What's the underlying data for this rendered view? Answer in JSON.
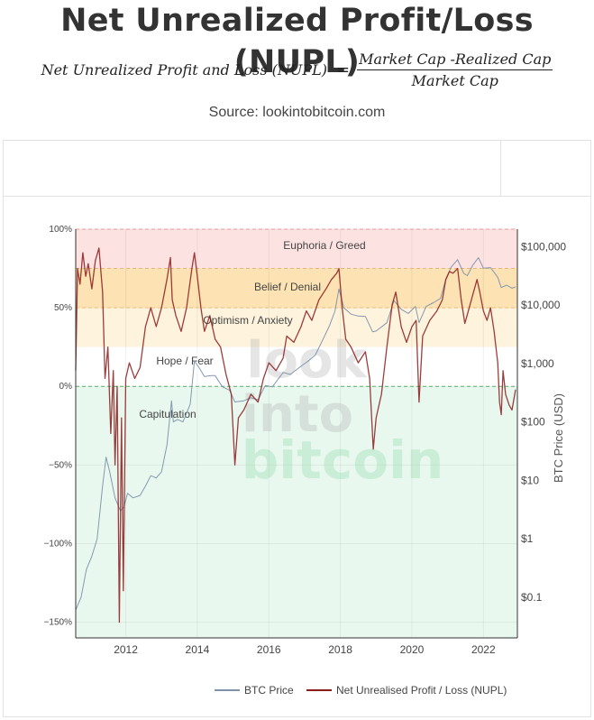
{
  "title": "Net Unrealized Profit/Loss (NUPL)",
  "formula": {
    "lhs": "Net Unrealized Profit and Loss (NUPL)",
    "equals": "=",
    "numerator": "Market Cap -Realized Cap",
    "denominator": "Market Cap"
  },
  "source": "Source: lookintobitcoin.com",
  "watermark": [
    "look",
    "into",
    "bitcoin"
  ],
  "chart_data": {
    "type": "line",
    "x_ticks": [
      "2012",
      "2014",
      "2016",
      "2018",
      "2020",
      "2022"
    ],
    "xlim": [
      2010.6,
      2022.95
    ],
    "y_left": {
      "ticks": [
        "100%",
        "50%",
        "0%",
        "−50%",
        "−100%",
        "−150%"
      ],
      "tick_values": [
        1.0,
        0.5,
        0.0,
        -0.5,
        -1.0,
        -1.5
      ],
      "range": [
        -1.6,
        1.0
      ]
    },
    "y_right": {
      "label": "BTC Price (USD)",
      "ticks": [
        "$100,000",
        "$10,000",
        "$1,000",
        "$100",
        "$10",
        "$1",
        "$0.1"
      ],
      "tick_values": [
        100000,
        10000,
        1000,
        100,
        10,
        1,
        0.1
      ],
      "scale": "log",
      "range": [
        0.02,
        200000
      ]
    },
    "zones": [
      {
        "label": "Euphoria / Greed",
        "from": 0.75,
        "to": 1.0,
        "color": "#fde2e2"
      },
      {
        "label": "Belief / Denial",
        "from": 0.5,
        "to": 0.75,
        "color": "#fde3b3"
      },
      {
        "label": "Optimism / Anxiety",
        "from": 0.25,
        "to": 0.5,
        "color": "#fef3dc"
      },
      {
        "label": "Hope / Fear",
        "from": 0.0,
        "to": 0.25,
        "color": "#ffffff"
      },
      {
        "label": "Capitulation",
        "from": -1.6,
        "to": 0.0,
        "color": "#e9f8ef"
      }
    ],
    "series": [
      {
        "name": "BTC Price",
        "color": "#7e92ab",
        "axis": "right",
        "points": [
          [
            2010.6,
            0.06
          ],
          [
            2010.75,
            0.1
          ],
          [
            2010.9,
            0.3
          ],
          [
            2011.05,
            0.5
          ],
          [
            2011.2,
            1.0
          ],
          [
            2011.35,
            8
          ],
          [
            2011.45,
            25
          ],
          [
            2011.55,
            14
          ],
          [
            2011.7,
            5
          ],
          [
            2011.85,
            3
          ],
          [
            2011.95,
            3.5
          ],
          [
            2012.05,
            6
          ],
          [
            2012.2,
            5
          ],
          [
            2012.4,
            5.5
          ],
          [
            2012.55,
            8
          ],
          [
            2012.7,
            12
          ],
          [
            2012.85,
            11
          ],
          [
            2013.0,
            14
          ],
          [
            2013.15,
            40
          ],
          [
            2013.28,
            230
          ],
          [
            2013.33,
            100
          ],
          [
            2013.45,
            110
          ],
          [
            2013.6,
            100
          ],
          [
            2013.8,
            200
          ],
          [
            2013.92,
            1100
          ],
          [
            2014.05,
            850
          ],
          [
            2014.2,
            600
          ],
          [
            2014.4,
            620
          ],
          [
            2014.5,
            620
          ],
          [
            2014.7,
            400
          ],
          [
            2014.9,
            350
          ],
          [
            2015.05,
            220
          ],
          [
            2015.3,
            230
          ],
          [
            2015.5,
            260
          ],
          [
            2015.7,
            240
          ],
          [
            2015.9,
            420
          ],
          [
            2016.1,
            400
          ],
          [
            2016.4,
            700
          ],
          [
            2016.6,
            650
          ],
          [
            2016.9,
            900
          ],
          [
            2017.1,
            1100
          ],
          [
            2017.3,
            1400
          ],
          [
            2017.5,
            2500
          ],
          [
            2017.7,
            4500
          ],
          [
            2017.85,
            8000
          ],
          [
            2017.96,
            19000
          ],
          [
            2018.1,
            9000
          ],
          [
            2018.3,
            7000
          ],
          [
            2018.5,
            6500
          ],
          [
            2018.7,
            6400
          ],
          [
            2018.9,
            3500
          ],
          [
            2019.0,
            3600
          ],
          [
            2019.3,
            5000
          ],
          [
            2019.5,
            12000
          ],
          [
            2019.7,
            8500
          ],
          [
            2019.9,
            7200
          ],
          [
            2020.1,
            9500
          ],
          [
            2020.2,
            5000
          ],
          [
            2020.4,
            9500
          ],
          [
            2020.6,
            11000
          ],
          [
            2020.8,
            13000
          ],
          [
            2020.95,
            28000
          ],
          [
            2021.1,
            45000
          ],
          [
            2021.28,
            60000
          ],
          [
            2021.45,
            35000
          ],
          [
            2021.55,
            32000
          ],
          [
            2021.7,
            48000
          ],
          [
            2021.86,
            65000
          ],
          [
            2022.0,
            43000
          ],
          [
            2022.2,
            44000
          ],
          [
            2022.4,
            30000
          ],
          [
            2022.5,
            20000
          ],
          [
            2022.65,
            22000
          ],
          [
            2022.8,
            19500
          ],
          [
            2022.9,
            20500
          ]
        ]
      },
      {
        "name": "Net Unrealised Profit / Loss (NUPL)",
        "color": "#8b1c1c",
        "axis": "left",
        "points": [
          [
            2010.6,
            0.1
          ],
          [
            2010.65,
            0.75
          ],
          [
            2010.72,
            0.65
          ],
          [
            2010.8,
            0.85
          ],
          [
            2010.88,
            0.7
          ],
          [
            2010.95,
            0.78
          ],
          [
            2011.05,
            0.62
          ],
          [
            2011.15,
            0.8
          ],
          [
            2011.25,
            0.88
          ],
          [
            2011.35,
            0.6
          ],
          [
            2011.42,
            0.05
          ],
          [
            2011.5,
            0.25
          ],
          [
            2011.58,
            -0.3
          ],
          [
            2011.65,
            0.1
          ],
          [
            2011.7,
            -0.5
          ],
          [
            2011.76,
            0.0
          ],
          [
            2011.82,
            -1.5
          ],
          [
            2011.88,
            -0.2
          ],
          [
            2011.93,
            -1.3
          ],
          [
            2012.0,
            0.05
          ],
          [
            2012.1,
            0.15
          ],
          [
            2012.25,
            0.05
          ],
          [
            2012.4,
            0.12
          ],
          [
            2012.55,
            0.38
          ],
          [
            2012.7,
            0.5
          ],
          [
            2012.85,
            0.38
          ],
          [
            2013.0,
            0.5
          ],
          [
            2013.15,
            0.68
          ],
          [
            2013.25,
            0.82
          ],
          [
            2013.3,
            0.55
          ],
          [
            2013.4,
            0.45
          ],
          [
            2013.55,
            0.35
          ],
          [
            2013.7,
            0.5
          ],
          [
            2013.85,
            0.75
          ],
          [
            2013.92,
            0.85
          ],
          [
            2014.0,
            0.7
          ],
          [
            2014.1,
            0.5
          ],
          [
            2014.2,
            0.35
          ],
          [
            2014.35,
            0.45
          ],
          [
            2014.5,
            0.3
          ],
          [
            2014.65,
            0.25
          ],
          [
            2014.8,
            0.08
          ],
          [
            2014.95,
            -0.05
          ],
          [
            2015.05,
            -0.5
          ],
          [
            2015.15,
            -0.2
          ],
          [
            2015.3,
            -0.15
          ],
          [
            2015.5,
            -0.05
          ],
          [
            2015.7,
            -0.1
          ],
          [
            2015.85,
            0.05
          ],
          [
            2016.0,
            0.15
          ],
          [
            2016.2,
            0.1
          ],
          [
            2016.4,
            0.18
          ],
          [
            2016.5,
            0.32
          ],
          [
            2016.7,
            0.28
          ],
          [
            2016.9,
            0.38
          ],
          [
            2017.05,
            0.48
          ],
          [
            2017.2,
            0.42
          ],
          [
            2017.4,
            0.55
          ],
          [
            2017.6,
            0.62
          ],
          [
            2017.75,
            0.68
          ],
          [
            2017.9,
            0.72
          ],
          [
            2017.96,
            0.75
          ],
          [
            2018.05,
            0.5
          ],
          [
            2018.15,
            0.3
          ],
          [
            2018.3,
            0.25
          ],
          [
            2018.5,
            0.15
          ],
          [
            2018.7,
            0.22
          ],
          [
            2018.82,
            0.05
          ],
          [
            2018.92,
            -0.4
          ],
          [
            2019.0,
            -0.2
          ],
          [
            2019.15,
            -0.05
          ],
          [
            2019.3,
            0.25
          ],
          [
            2019.45,
            0.52
          ],
          [
            2019.55,
            0.6
          ],
          [
            2019.7,
            0.38
          ],
          [
            2019.85,
            0.28
          ],
          [
            2020.0,
            0.38
          ],
          [
            2020.12,
            0.42
          ],
          [
            2020.2,
            -0.1
          ],
          [
            2020.3,
            0.32
          ],
          [
            2020.5,
            0.42
          ],
          [
            2020.7,
            0.48
          ],
          [
            2020.85,
            0.55
          ],
          [
            2020.95,
            0.68
          ],
          [
            2021.05,
            0.73
          ],
          [
            2021.15,
            0.72
          ],
          [
            2021.28,
            0.75
          ],
          [
            2021.38,
            0.55
          ],
          [
            2021.48,
            0.4
          ],
          [
            2021.58,
            0.48
          ],
          [
            2021.7,
            0.58
          ],
          [
            2021.82,
            0.68
          ],
          [
            2021.9,
            0.6
          ],
          [
            2022.0,
            0.48
          ],
          [
            2022.1,
            0.42
          ],
          [
            2022.2,
            0.5
          ],
          [
            2022.3,
            0.35
          ],
          [
            2022.4,
            0.15
          ],
          [
            2022.45,
            -0.1
          ],
          [
            2022.5,
            -0.18
          ],
          [
            2022.55,
            0.1
          ],
          [
            2022.62,
            -0.05
          ],
          [
            2022.72,
            -0.12
          ],
          [
            2022.8,
            -0.15
          ],
          [
            2022.9,
            -0.02
          ]
        ]
      }
    ],
    "legend": {
      "placement": "bottom-right",
      "items": [
        {
          "label": "BTC Price",
          "color": "#7e92ab"
        },
        {
          "label": "Net Unrealised Profit / Loss (NUPL)",
          "color": "#8b1c1c"
        }
      ]
    },
    "grid": true,
    "zero_line": "dashed-green"
  }
}
